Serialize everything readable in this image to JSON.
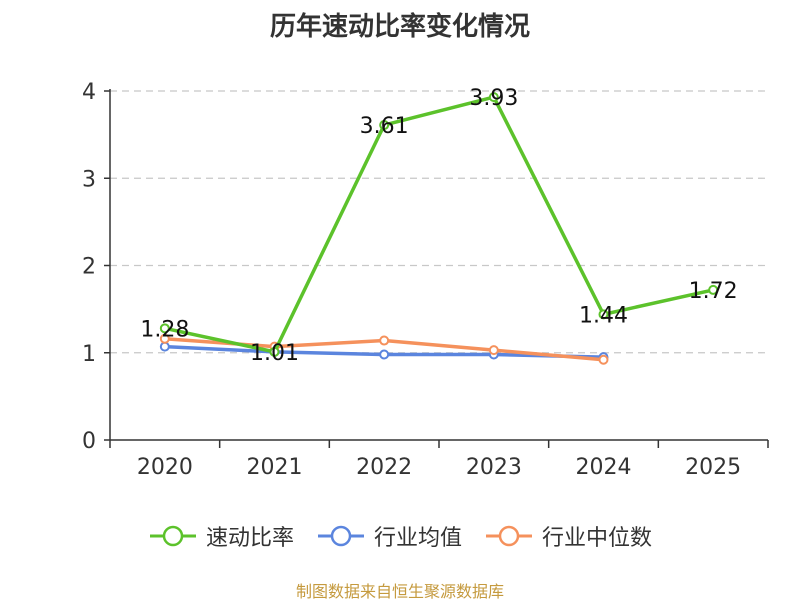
{
  "title": "历年速动比率变化情况",
  "source": "制图数据来自恒生聚源数据库",
  "chart_data": {
    "type": "line",
    "title": "历年速动比率变化情况",
    "categories": [
      "2020",
      "2021",
      "2022",
      "2023",
      "2024",
      "2025"
    ],
    "ylim": [
      0,
      4
    ],
    "yticks": [
      0,
      1,
      2,
      3,
      4
    ],
    "grid": true,
    "legend_position": "bottom",
    "series": [
      {
        "name": "速动比率",
        "color": "#5cc22b",
        "values": [
          1.28,
          1.01,
          3.61,
          3.93,
          1.44,
          1.72
        ],
        "labels": [
          "1.28",
          "1.01",
          "3.61",
          "3.93",
          "1.44",
          "1.72"
        ]
      },
      {
        "name": "行业均值",
        "color": "#5b85de",
        "values": [
          1.07,
          1.01,
          0.98,
          0.98,
          0.95,
          null
        ]
      },
      {
        "name": "行业中位数",
        "color": "#f5915c",
        "values": [
          1.16,
          1.07,
          1.14,
          1.03,
          0.92,
          null
        ]
      }
    ]
  }
}
